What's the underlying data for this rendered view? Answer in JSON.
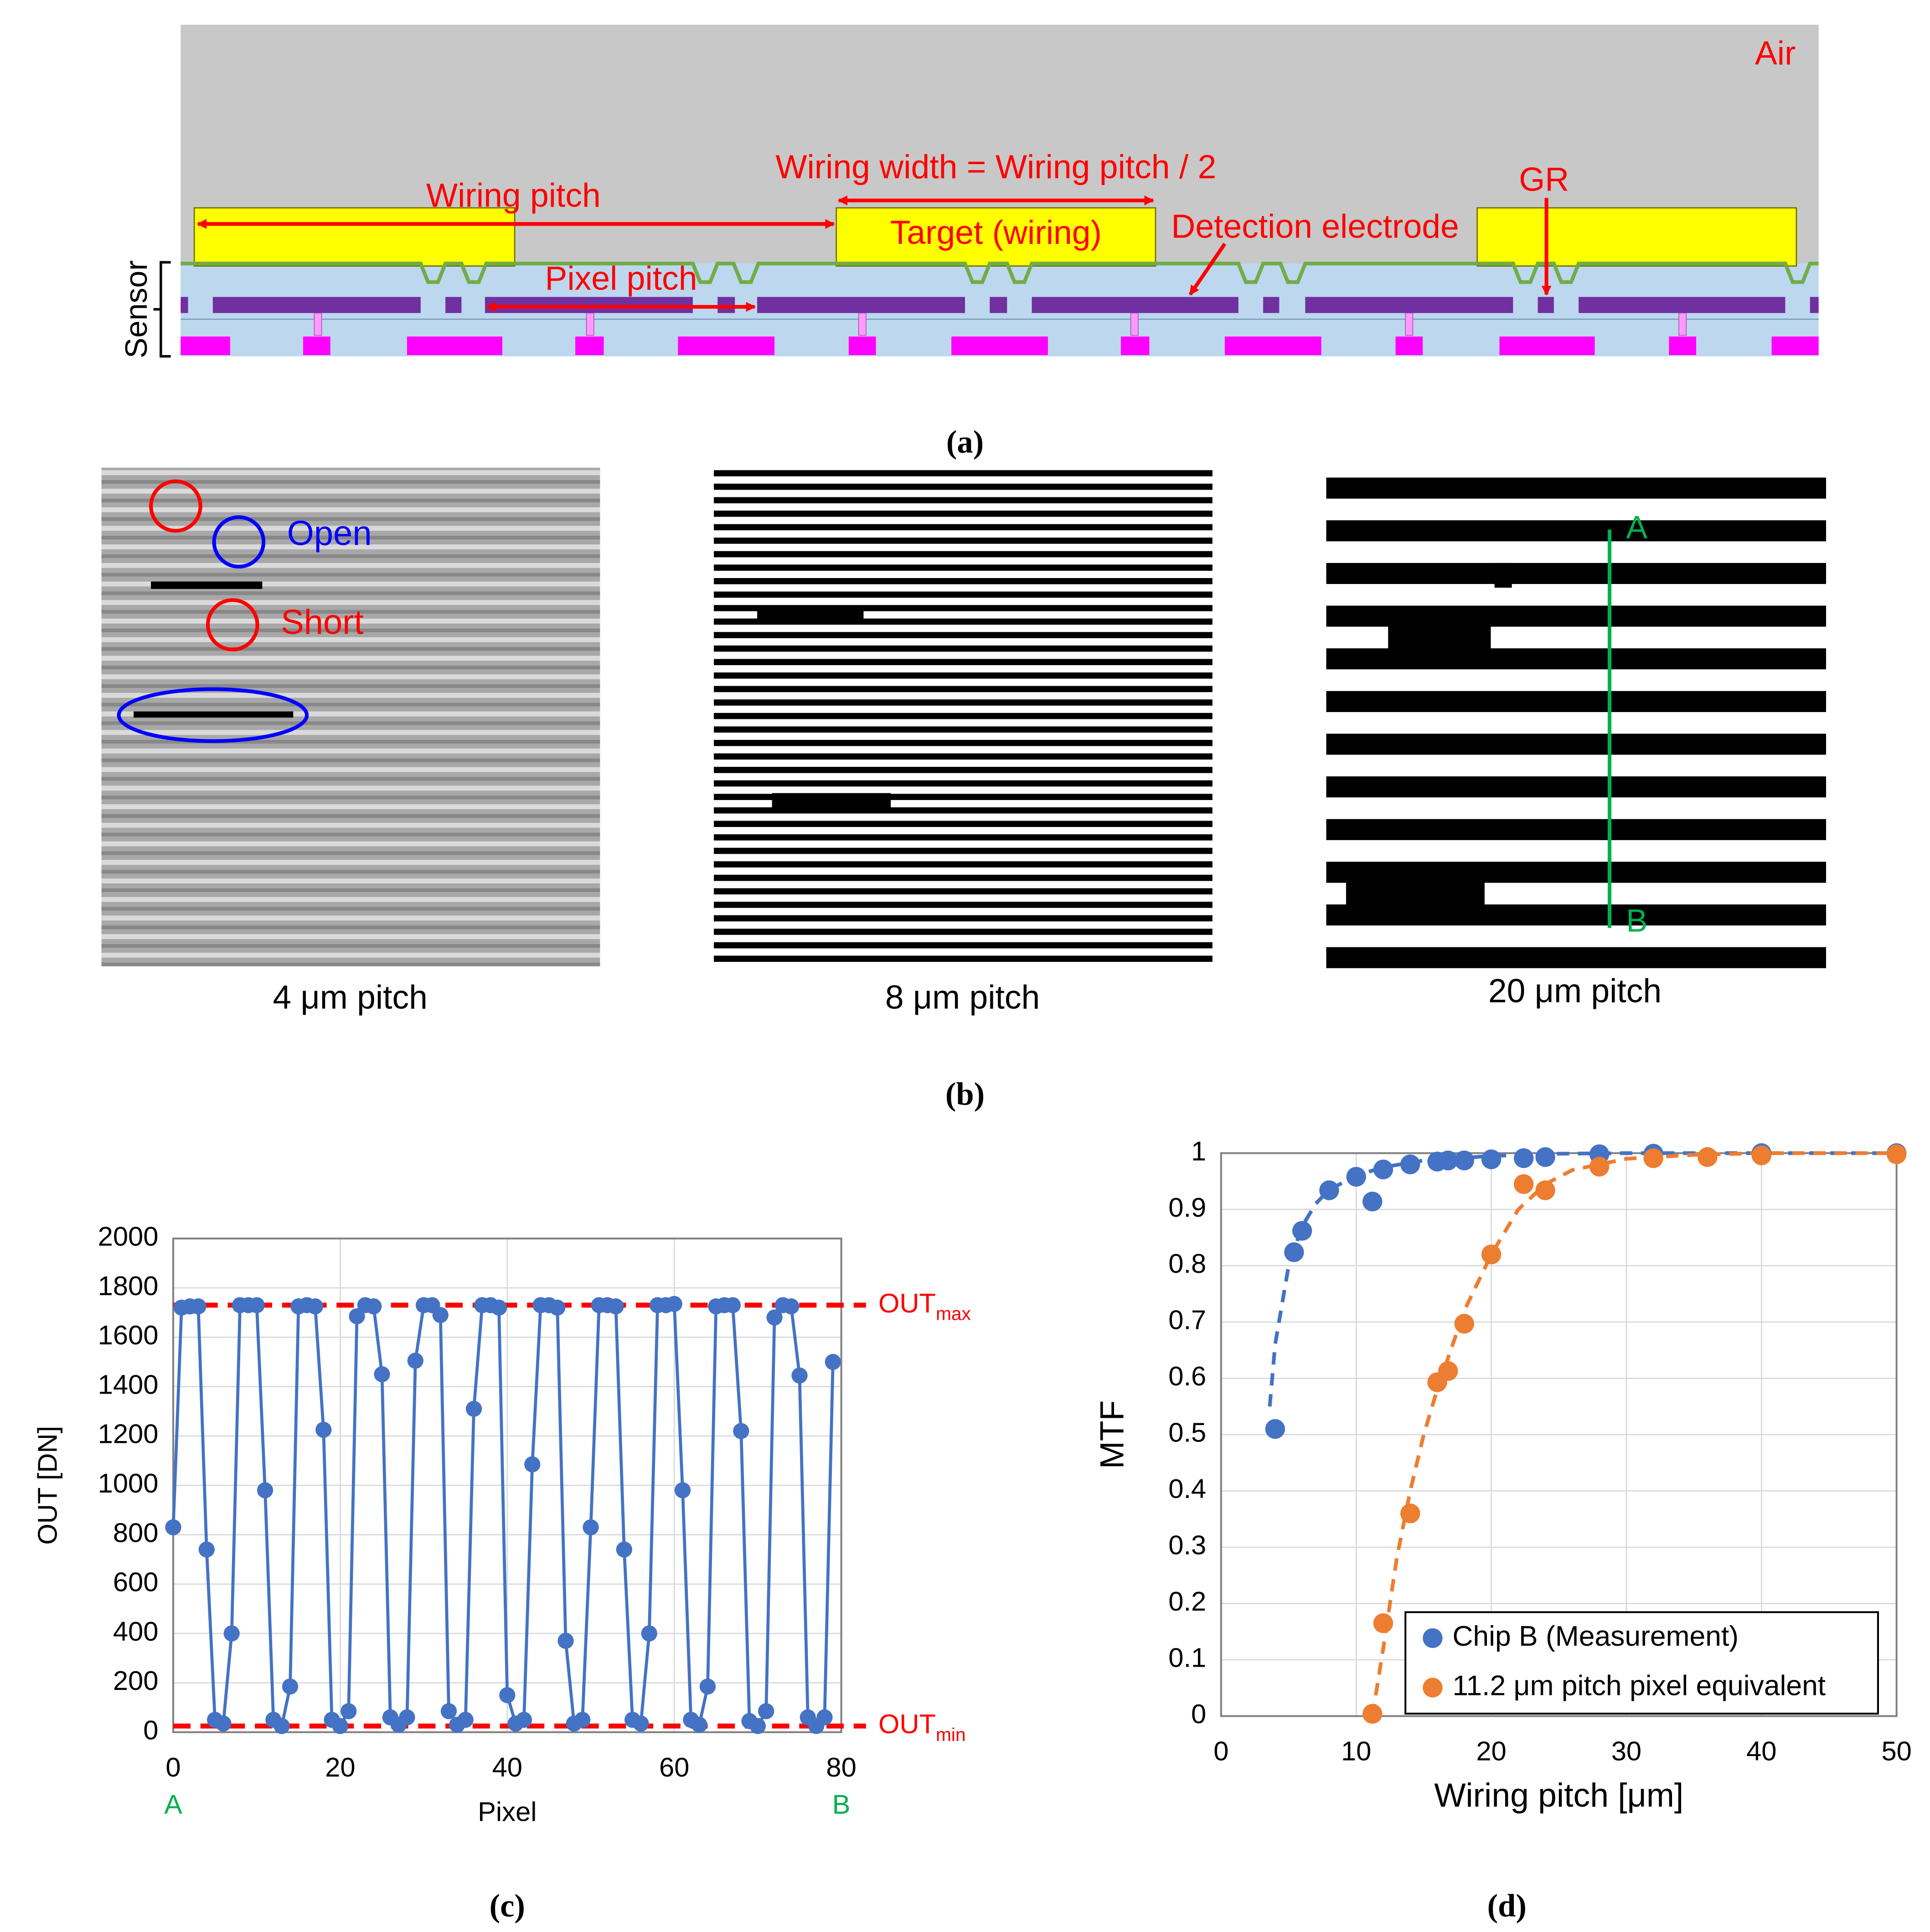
{
  "panel_a": {
    "air": "Air",
    "wiring_pitch": "Wiring pitch",
    "wiring_width": "Wiring width = Wiring pitch / 2",
    "gr": "GR",
    "target": "Target (wiring)",
    "detection_electrode": "Detection electrode",
    "pixel_pitch": "Pixel pitch",
    "sensor": "Sensor",
    "caption": "(a)"
  },
  "panel_b": {
    "open": "Open",
    "short": "Short",
    "labels": [
      "4 μm pitch",
      "8 μm pitch",
      "20 μm pitch"
    ],
    "point_a": "A",
    "point_b": "B",
    "caption": "(b)"
  },
  "chart_data": [
    {
      "type": "line",
      "caption": "(c)",
      "x_label": "Pixel",
      "y_label": "OUT [DN]",
      "endpoint_labels": [
        "A",
        "B"
      ],
      "x": [
        0,
        1,
        2,
        3,
        4,
        5,
        6,
        7,
        8,
        9,
        10,
        11,
        12,
        13,
        14,
        15,
        16,
        17,
        18,
        19,
        20,
        21,
        22,
        23,
        24,
        25,
        26,
        27,
        28,
        29,
        30,
        31,
        32,
        33,
        34,
        35,
        36,
        37,
        38,
        39,
        40,
        41,
        42,
        43,
        44,
        45,
        46,
        47,
        48,
        49,
        50,
        51,
        52,
        53,
        54,
        55,
        56,
        57,
        58,
        59,
        60,
        61,
        62,
        63,
        64,
        65,
        66,
        67,
        68,
        69,
        70,
        71,
        72,
        73,
        74,
        75,
        76,
        77,
        78,
        79
      ],
      "series": [
        {
          "color": "#4472c4",
          "values": [
            830,
            1720,
            1725,
            1725,
            740,
            50,
            35,
            400,
            1730,
            1730,
            1730,
            980,
            50,
            25,
            185,
            1725,
            1730,
            1725,
            1225,
            50,
            25,
            85,
            1685,
            1730,
            1725,
            1450,
            60,
            30,
            60,
            1505,
            1730,
            1730,
            1690,
            85,
            30,
            50,
            1310,
            1730,
            1730,
            1720,
            150,
            35,
            50,
            1085,
            1730,
            1730,
            1720,
            370,
            35,
            50,
            830,
            1730,
            1730,
            1725,
            740,
            50,
            35,
            400,
            1730,
            1730,
            1735,
            980,
            50,
            30,
            185,
            1725,
            1730,
            1730,
            1220,
            45,
            25,
            85,
            1680,
            1730,
            1725,
            1445,
            60,
            25,
            60,
            1500
          ]
        }
      ],
      "reference_lines": [
        {
          "label": "OUT",
          "sub": "max",
          "value": 1730,
          "color": "#ff0000"
        },
        {
          "label": "OUT",
          "sub": "min",
          "value": 25,
          "color": "#ff0000"
        }
      ],
      "xlim": [
        0,
        80
      ],
      "xticks": [
        0,
        20,
        40,
        60,
        80
      ],
      "ylim": [
        0,
        2000
      ],
      "yticks": [
        0,
        200,
        400,
        600,
        800,
        1000,
        1200,
        1400,
        1600,
        1800,
        2000
      ],
      "grid": true
    },
    {
      "type": "scatter",
      "caption": "(d)",
      "x_label": "Wiring pitch [μm]",
      "y_label": "MTF",
      "legend": "lower right",
      "series": [
        {
          "name": "Chip B (Measurement)",
          "color": "#4472c4",
          "x": [
            4,
            5.4,
            6,
            8,
            10,
            11.2,
            12,
            14,
            16,
            16.8,
            18,
            20,
            22.4,
            24,
            28,
            32,
            40,
            50
          ],
          "values": [
            0.51,
            0.824,
            0.862,
            0.934,
            0.958,
            0.914,
            0.971,
            0.98,
            0.985,
            0.987,
            0.987,
            0.989,
            0.991,
            0.993,
            0.998,
            0.999,
            1,
            1
          ],
          "fit": {
            "x": [
              3.6,
              4,
              5,
              6,
              7,
              8,
              10,
              12,
              15,
              20,
              25,
              30,
              50
            ],
            "values": [
              0.55,
              0.66,
              0.8,
              0.87,
              0.91,
              0.935,
              0.96,
              0.975,
              0.987,
              0.995,
              0.999,
              1,
              1
            ]
          }
        },
        {
          "name": "11.2 μm pitch pixel equivalent",
          "color": "#ed7d31",
          "x": [
            11.2,
            12,
            14,
            16,
            16.8,
            18,
            20,
            22.4,
            24,
            28,
            32,
            36,
            40,
            50
          ],
          "values": [
            0.004,
            0.165,
            0.36,
            0.593,
            0.613,
            0.697,
            0.82,
            0.945,
            0.934,
            0.976,
            0.991,
            0.993,
            0.996,
            0.998
          ],
          "fit": {
            "x": [
              11.2,
              12,
              13,
              14,
              15,
              16,
              18,
              20,
              22,
              24,
              26,
              30,
              35,
              40,
              50
            ],
            "values": [
              0,
              0.12,
              0.28,
              0.4,
              0.5,
              0.58,
              0.72,
              0.82,
              0.9,
              0.945,
              0.97,
              0.99,
              0.997,
              1,
              1
            ]
          }
        }
      ],
      "xlim": [
        0,
        50
      ],
      "xticks": [
        0,
        10,
        20,
        30,
        40,
        50
      ],
      "ylim": [
        0,
        1
      ],
      "yticks": [
        0,
        0.1,
        0.2,
        0.3,
        0.4,
        0.5,
        0.6,
        0.7,
        0.8,
        0.9,
        1
      ],
      "grid": true
    }
  ]
}
